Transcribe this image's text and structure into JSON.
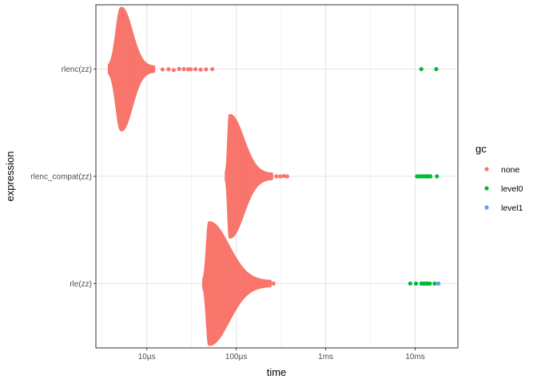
{
  "chart_data": {
    "type": "scatter",
    "subtype": "beeswarm",
    "xlabel": "time",
    "ylabel": "expression",
    "x_scale": "log10",
    "x_unit": "seconds",
    "xlim": [
      2.7e-06,
      0.03
    ],
    "x_ticks": [
      {
        "value": 1e-05,
        "label": "10µs"
      },
      {
        "value": 0.0001,
        "label": "100µs"
      },
      {
        "value": 0.001,
        "label": "1ms"
      },
      {
        "value": 0.01,
        "label": "10ms"
      }
    ],
    "categories": [
      "rlenc(zz)",
      "rlenc_compat(zz)",
      "rle(zz)"
    ],
    "grid": true,
    "legend": {
      "title": "gc",
      "position": "right",
      "entries": [
        {
          "name": "none",
          "color": "#F8766D"
        },
        {
          "name": "level0",
          "color": "#00BA38"
        },
        {
          "name": "level1",
          "color": "#619CFF"
        }
      ]
    },
    "series": [
      {
        "category": "rlenc(zz)",
        "gc": "none",
        "mode_time": 5.2e-06,
        "min_time": 3.8e-06,
        "max_time_bulk": 1.2e-05,
        "max_width": 0.55,
        "outliers": [
          1.5e-05,
          1.75e-05,
          2e-05,
          2.3e-05,
          2.6e-05,
          2.9e-05,
          3.1e-05,
          3.5e-05,
          4e-05,
          4.6e-05,
          5.4e-05
        ]
      },
      {
        "category": "rlenc(zz)",
        "gc": "level0",
        "points": [
          0.0117,
          0.0172
        ]
      },
      {
        "category": "rlenc_compat(zz)",
        "gc": "none",
        "mode_time": 8.5e-05,
        "min_time": 7.7e-05,
        "max_time_bulk": 0.00025,
        "max_width": 0.55,
        "outliers": [
          0.00028,
          0.00031,
          0.00034,
          0.00037
        ]
      },
      {
        "category": "rlenc_compat(zz)",
        "gc": "level0",
        "points": [
          0.0105,
          0.0112,
          0.0118,
          0.0124,
          0.013,
          0.0136,
          0.0142,
          0.0148,
          0.0175
        ]
      },
      {
        "category": "rle(zz)",
        "gc": "none",
        "mode_time": 5e-05,
        "min_time": 4.3e-05,
        "max_time_bulk": 0.00024,
        "max_width": 0.55,
        "outliers": [
          0.00026
        ]
      },
      {
        "category": "rle(zz)",
        "gc": "level0",
        "points": [
          0.0088,
          0.0102,
          0.0117,
          0.0122,
          0.0128,
          0.0134,
          0.014,
          0.0146,
          0.0165
        ]
      },
      {
        "category": "rle(zz)",
        "gc": "level1",
        "points": [
          0.0182
        ]
      }
    ]
  }
}
